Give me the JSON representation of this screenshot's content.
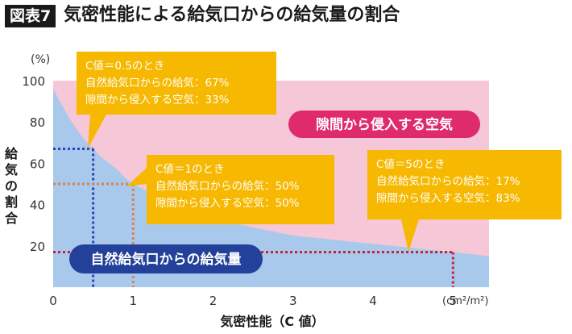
{
  "figure": {
    "badge": "図表7",
    "title": "気密性能による給気口からの給気量の割合"
  },
  "chart_data": {
    "type": "area",
    "title": "気密性能による給気口からの給気量の割合",
    "xlabel": "気密性能（C 値）",
    "ylabel": "給気の割合",
    "x_unit": "(cm²/m²)",
    "y_unit": "(%)",
    "xlim": [
      0,
      5.45
    ],
    "ylim": [
      0,
      100
    ],
    "x_ticks": [
      "0",
      "1",
      "2",
      "3",
      "4",
      "5"
    ],
    "y_ticks": [
      "20",
      "40",
      "60",
      "80",
      "100"
    ],
    "grid": false,
    "series": [
      {
        "name": "自然給気口からの給気量",
        "color": "#a9c9ec",
        "x": [
          0,
          0.1,
          0.2,
          0.3,
          0.4,
          0.5,
          0.6,
          0.7,
          0.8,
          0.9,
          1.0,
          1.25,
          1.5,
          1.75,
          2.0,
          2.5,
          3.0,
          3.5,
          4.0,
          4.5,
          5.0,
          5.45
        ],
        "values": [
          96,
          89,
          82,
          76,
          71,
          67,
          63,
          60,
          57,
          53,
          50,
          45,
          40,
          37,
          33,
          29,
          25,
          23,
          21,
          19,
          17,
          15
        ]
      },
      {
        "name": "隙間から侵入する空気",
        "color": "#f6c7d6",
        "x": [
          0,
          0.1,
          0.2,
          0.3,
          0.4,
          0.5,
          0.6,
          0.7,
          0.8,
          0.9,
          1.0,
          1.25,
          1.5,
          1.75,
          2.0,
          2.5,
          3.0,
          3.5,
          4.0,
          4.5,
          5.0,
          5.45
        ],
        "values": [
          4,
          11,
          18,
          24,
          29,
          33,
          37,
          40,
          43,
          47,
          50,
          55,
          60,
          63,
          67,
          71,
          75,
          77,
          79,
          81,
          83,
          85
        ]
      }
    ],
    "highlights": [
      {
        "x": 0.5,
        "y": 67,
        "color": "#2f3fbf"
      },
      {
        "x": 1.0,
        "y": 50,
        "color": "#d9824a"
      },
      {
        "x": 5.0,
        "y": 17,
        "color": "#c82034"
      }
    ],
    "callouts": [
      {
        "lines": [
          "C値＝0.5のとき",
          "自然給気口からの給気：67%",
          "隙間から侵入する空気：33%"
        ]
      },
      {
        "lines": [
          "C値＝1のとき",
          "自然給気口からの給気：50%",
          "隙間から侵入する空気：50%"
        ]
      },
      {
        "lines": [
          "C値＝5のとき",
          "自然給気口からの給気：17%",
          "隙間から侵入する空気：83%"
        ]
      }
    ],
    "region_labels": {
      "upper": "隙間から侵入する空気",
      "lower": "自然給気口からの給気量"
    },
    "colors": {
      "callout": "#f6b800",
      "upper_badge": "#df2a6b",
      "lower_badge": "#23409a"
    }
  }
}
